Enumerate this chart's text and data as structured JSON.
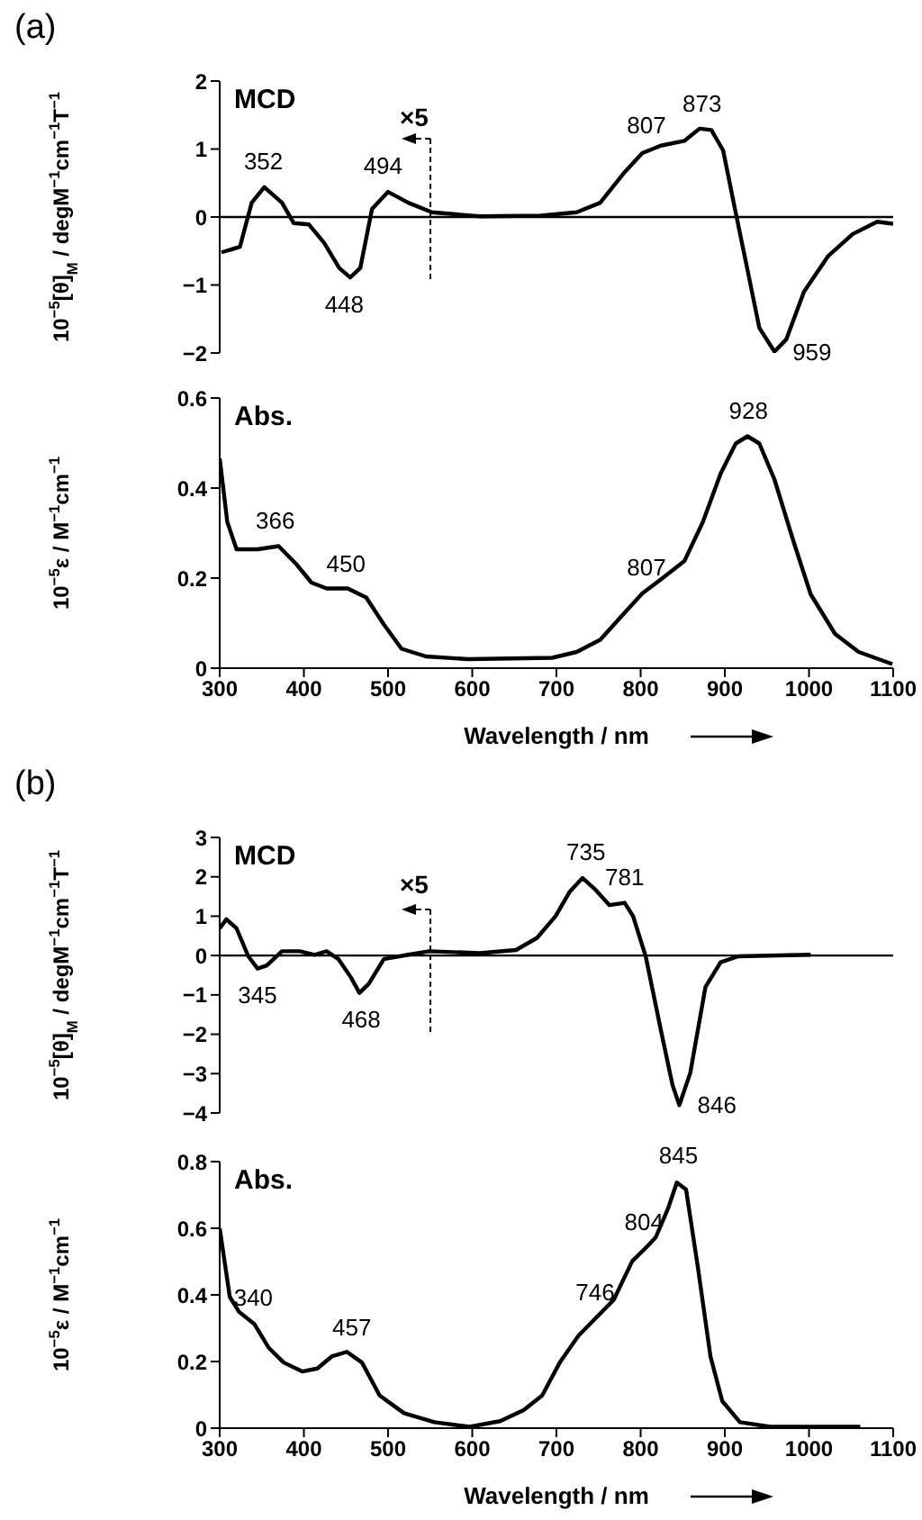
{
  "chart_data": [
    {
      "type": "line",
      "title": "MCD",
      "ylabel": "10$^{−5}$[θ]$_{M}$ / degM$^{−1}$cm$^{−1}$T$^{−1}$",
      "xlim": [
        300,
        1100
      ],
      "ylim": [
        -2,
        2
      ],
      "yticks": [
        -2,
        -1,
        0,
        1,
        2
      ],
      "tick_labels": "y",
      "ref_lines": [
        {
          "axis": "y",
          "value": 0,
          "color": "#000000"
        }
      ],
      "annotations": [
        "(a)",
        {
          "text": "352",
          "x": 352,
          "y": 0.44
        },
        {
          "text": "494",
          "x": 494,
          "y": 0.37
        },
        {
          "text": "448",
          "x": 448,
          "y": -0.89
        },
        {
          "text": "807",
          "x": 807,
          "y": 0.97
        },
        {
          "text": "873",
          "x": 873,
          "y": 1.29
        },
        {
          "text": "959",
          "x": 959,
          "y": -1.98
        },
        "×5"
      ],
      "series": [
        {
          "color": "#000000",
          "x": [
            302,
            324,
            338,
            353,
            374,
            388,
            406,
            424,
            442,
            455,
            467,
            481,
            500,
            524,
            552,
            609,
            681,
            724,
            752,
            781,
            802,
            824,
            852,
            870,
            884,
            898,
            912,
            926,
            941,
            959,
            973,
            994,
            1023,
            1052,
            1081,
            1100
          ],
          "values": [
            -0.52,
            -0.44,
            0.21,
            0.44,
            0.21,
            -0.09,
            -0.11,
            -0.38,
            -0.75,
            -0.89,
            -0.75,
            0.12,
            0.37,
            0.21,
            0.07,
            0.01,
            0.02,
            0.07,
            0.21,
            0.66,
            0.94,
            1.05,
            1.12,
            1.3,
            1.28,
            0.98,
            0.12,
            -0.72,
            -1.63,
            -1.98,
            -1.8,
            -1.1,
            -0.57,
            -0.25,
            -0.07,
            -0.1
          ]
        }
      ]
    },
    {
      "type": "line",
      "title": "Abs.",
      "ylabel": "10$^{−5}$ε / M$^{−1}$cm$^{−1}$",
      "xlabel": "Wavelength / nm",
      "xlim": [
        300,
        1100
      ],
      "xticks": [
        300,
        400,
        500,
        600,
        700,
        800,
        900,
        1000,
        1100
      ],
      "ylim": [
        0,
        0.6
      ],
      "yticks": [
        0,
        0.2,
        0.4,
        0.6
      ],
      "annotations": [
        {
          "text": "366",
          "x": 366,
          "y": 0.27
        },
        {
          "text": "450",
          "x": 450,
          "y": 0.175
        },
        {
          "text": "807",
          "x": 807,
          "y": 0.166
        },
        {
          "text": "928",
          "x": 928,
          "y": 0.515
        }
      ],
      "series": [
        {
          "color": "#000000",
          "x": [
            300,
            309,
            320,
            345,
            370,
            391,
            409,
            427,
            452,
            474,
            495,
            516,
            545,
            595,
            695,
            724,
            752,
            781,
            802,
            824,
            852,
            874,
            895,
            913,
            927,
            941,
            959,
            981,
            1002,
            1031,
            1059,
            1099
          ],
          "values": [
            0.466,
            0.325,
            0.264,
            0.264,
            0.271,
            0.231,
            0.19,
            0.177,
            0.177,
            0.157,
            0.097,
            0.043,
            0.026,
            0.02,
            0.023,
            0.036,
            0.063,
            0.123,
            0.166,
            0.197,
            0.238,
            0.325,
            0.432,
            0.499,
            0.515,
            0.499,
            0.419,
            0.285,
            0.164,
            0.076,
            0.036,
            0.009
          ]
        }
      ]
    },
    {
      "type": "line",
      "title": "MCD",
      "ylabel": "10$^{−5}$[θ]$_{M}$ / degM$^{−1}$cm$^{−1}$T$^{−1}$",
      "xlim": [
        300,
        1100
      ],
      "ylim": [
        -4,
        3
      ],
      "yticks": [
        -4,
        -3,
        -2,
        -1,
        0,
        1,
        2,
        3
      ],
      "tick_labels": "y",
      "ref_lines": [
        {
          "axis": "y",
          "value": 0,
          "color": "#000000"
        }
      ],
      "annotations": [
        "(b)",
        {
          "text": "345",
          "x": 345,
          "y": -0.33
        },
        {
          "text": "468",
          "x": 468,
          "y": -0.95
        },
        {
          "text": "735",
          "x": 735,
          "y": 1.97
        },
        {
          "text": "781",
          "x": 781,
          "y": 1.34
        },
        {
          "text": "846",
          "x": 846,
          "y": -3.8
        },
        "×5"
      ],
      "series": [
        {
          "color": "#000000",
          "x": [
            300,
            308,
            320,
            334,
            345,
            356,
            374,
            395,
            413,
            427,
            441,
            456,
            466,
            477,
            495,
            524,
            549,
            609,
            652,
            677,
            699,
            716,
            731,
            745,
            763,
            781,
            791,
            806,
            824,
            838,
            846,
            859,
            877,
            895,
            916,
            1002
          ],
          "values": [
            0.69,
            0.92,
            0.69,
            -0.02,
            -0.33,
            -0.25,
            0.11,
            0.11,
            0.02,
            0.11,
            -0.09,
            -0.56,
            -0.95,
            -0.72,
            -0.09,
            0.02,
            0.11,
            0.06,
            0.14,
            0.45,
            1.0,
            1.63,
            1.97,
            1.7,
            1.28,
            1.34,
            1.0,
            -0.02,
            -1.89,
            -3.3,
            -3.8,
            -2.98,
            -0.8,
            -0.17,
            -0.02,
            0.02
          ]
        }
      ]
    },
    {
      "type": "line",
      "title": "Abs.",
      "ylabel": "10$^{−5}$ε / M$^{−1}$cm$^{−1}$",
      "xlabel": "Wavelength / nm",
      "xlim": [
        300,
        1100
      ],
      "xticks": [
        300,
        400,
        500,
        600,
        700,
        800,
        900,
        1000,
        1100
      ],
      "ylim": [
        0,
        0.8
      ],
      "yticks": [
        0,
        0.2,
        0.4,
        0.6,
        0.8
      ],
      "annotations": [
        {
          "text": "340",
          "x": 340,
          "y": 0.313
        },
        {
          "text": "457",
          "x": 457,
          "y": 0.225
        },
        {
          "text": "746",
          "x": 746,
          "y": 0.33
        },
        {
          "text": "804",
          "x": 804,
          "y": 0.54
        },
        {
          "text": "845",
          "x": 845,
          "y": 0.74
        }
      ],
      "series": [
        {
          "color": "#000000",
          "x": [
            300,
            312,
            323,
            341,
            358,
            376,
            398,
            416,
            433,
            451,
            469,
            490,
            519,
            555,
            597,
            633,
            661,
            683,
            704,
            726,
            747,
            768,
            790,
            808,
            818,
            833,
            843,
            854,
            868,
            883,
            897,
            918,
            954,
            1061
          ],
          "values": [
            0.6,
            0.394,
            0.349,
            0.313,
            0.242,
            0.197,
            0.17,
            0.179,
            0.215,
            0.229,
            0.197,
            0.098,
            0.045,
            0.018,
            0.004,
            0.021,
            0.054,
            0.098,
            0.197,
            0.277,
            0.331,
            0.385,
            0.501,
            0.546,
            0.573,
            0.662,
            0.737,
            0.716,
            0.483,
            0.215,
            0.081,
            0.018,
            0.004,
            0.004
          ]
        }
      ]
    }
  ]
}
